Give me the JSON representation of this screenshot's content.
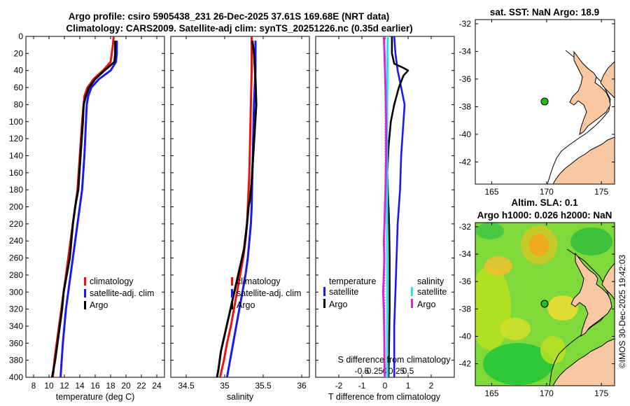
{
  "titles": {
    "line1": "Argo profile: csiro 5905438_231 26-Dec-2025 37.61S 169.68E (NRT data)",
    "line2": "Climatology: CARS2009. Satellite-adj clim: synTS_20251226.nc (0.35d earlier)",
    "sst_title": "sat. SST: NaN Argo: 18.9",
    "sla_title1": "Altim. SLA: 0.1",
    "sla_title2": "Argo h1000: 0.026 h2000: NaN"
  },
  "credit": "©IMOS 30-Dec-2025 19:42:03",
  "colors": {
    "climatology": "#ee1111",
    "satellite": "#1a1aee",
    "argo": "#000000",
    "sat_salinity": "#22e5e5",
    "argo_salinity": "#e020e0",
    "land": "#f9c8a0",
    "marker": "#22bb22"
  },
  "chart_data": [
    {
      "type": "line",
      "name": "temperature-profile",
      "xlabel": "temperature (deg C)",
      "ylabel": "depth",
      "xlim": [
        7,
        25
      ],
      "ylim": [
        400,
        0
      ],
      "xticks": [
        8,
        10,
        12,
        14,
        16,
        18,
        20,
        22,
        24
      ],
      "yticks": [
        0,
        20,
        40,
        60,
        80,
        100,
        120,
        140,
        160,
        180,
        200,
        220,
        240,
        260,
        280,
        300,
        320,
        340,
        360,
        380,
        400
      ],
      "legend": [
        "climatology",
        "satellite-adj. clim",
        "Argo"
      ],
      "legend_position": "lower-right",
      "series": [
        {
          "name": "climatology",
          "x": [
            18.4,
            18.3,
            18.0,
            17.0,
            15.8,
            15.0,
            14.6,
            14.5,
            14.3,
            14.0,
            13.7,
            13.4,
            13.1,
            12.8,
            12.5,
            12.2,
            11.9,
            11.6,
            11.3,
            11.0,
            10.7,
            10.5
          ],
          "y": [
            0,
            10,
            30,
            40,
            50,
            60,
            70,
            80,
            100,
            140,
            180,
            200,
            220,
            240,
            260,
            280,
            300,
            320,
            340,
            360,
            380,
            400
          ]
        },
        {
          "name": "satellite-adj. clim",
          "x": [
            18.8,
            18.8,
            18.7,
            18.0,
            16.5,
            15.5,
            15.1,
            14.9,
            14.8,
            14.6,
            14.3,
            14.0,
            13.7,
            13.4,
            13.1,
            12.8,
            12.5,
            12.2,
            12.0,
            11.8,
            11.5
          ],
          "y": [
            5,
            20,
            30,
            40,
            50,
            60,
            70,
            80,
            100,
            140,
            180,
            200,
            220,
            240,
            260,
            280,
            300,
            320,
            340,
            360,
            400
          ]
        },
        {
          "name": "Argo",
          "x": [
            18.6,
            18.6,
            18.5,
            17.2,
            16.0,
            15.2,
            14.8,
            14.5,
            14.4,
            14.1,
            13.8,
            13.4,
            13.1,
            12.9,
            12.7,
            12.3,
            11.9,
            11.7,
            11.4,
            11.1,
            10.8,
            10.6,
            10.4
          ],
          "y": [
            5,
            20,
            30,
            40,
            50,
            60,
            70,
            80,
            100,
            140,
            180,
            200,
            220,
            240,
            260,
            280,
            300,
            320,
            340,
            360,
            380,
            390,
            400
          ]
        }
      ]
    },
    {
      "type": "line",
      "name": "salinity-profile",
      "xlabel": "salinity",
      "ylabel": "depth",
      "xlim": [
        34.3,
        36.1
      ],
      "ylim": [
        400,
        0
      ],
      "xticks": [
        34.5,
        35,
        35.5,
        36
      ],
      "legend": [
        "climatology",
        "satellite-adj. clim",
        "Argo"
      ],
      "legend_position": "lower-right",
      "series": [
        {
          "name": "climatology",
          "x": [
            35.35,
            35.35,
            35.34,
            35.33,
            35.32,
            35.31,
            35.3,
            35.29,
            35.27,
            35.24,
            35.2,
            35.16,
            35.12,
            35.08,
            35.03,
            34.99,
            34.94
          ],
          "y": [
            0,
            40,
            80,
            120,
            160,
            180,
            200,
            220,
            240,
            260,
            280,
            300,
            320,
            340,
            360,
            380,
            400
          ]
        },
        {
          "name": "satellite-adj. clim",
          "x": [
            35.4,
            35.4,
            35.38,
            35.37,
            35.36,
            35.35,
            35.34,
            35.32,
            35.3,
            35.27,
            35.23,
            35.19,
            35.15,
            35.11,
            35.07,
            35.03
          ],
          "y": [
            5,
            40,
            80,
            120,
            160,
            200,
            220,
            240,
            260,
            280,
            300,
            320,
            340,
            360,
            380,
            400
          ]
        },
        {
          "name": "Argo",
          "x": [
            35.36,
            35.38,
            35.4,
            35.41,
            35.39,
            35.37,
            35.35,
            35.33,
            35.31,
            35.29,
            35.25,
            35.2,
            35.15,
            35.1,
            35.05,
            35.0,
            34.95,
            34.92,
            34.9
          ],
          "y": [
            5,
            20,
            50,
            80,
            110,
            140,
            170,
            190,
            200,
            220,
            250,
            270,
            290,
            310,
            330,
            350,
            370,
            390,
            400
          ]
        }
      ]
    },
    {
      "type": "line",
      "name": "difference-profile",
      "xlabel": "T difference from climatology",
      "x2label": "S difference from climatology",
      "ylabel": "depth",
      "xlim": [
        -3,
        3
      ],
      "ylim": [
        400,
        0
      ],
      "xticks": [
        -2,
        -1,
        0,
        1,
        2
      ],
      "x2ticks": [
        "-0.5",
        "-0.25",
        "0",
        "0.25",
        "0.5"
      ],
      "legend": {
        "temperature": [
          "satellite",
          "Argo"
        ],
        "salinity": [
          "satellite",
          "Argo"
        ]
      },
      "legend_position": "lower-center",
      "series": [
        {
          "name": "T satellite",
          "x": [
            0.4,
            0.45,
            0.55,
            0.7,
            0.85,
            0.8,
            0.7,
            0.65,
            0.55,
            0.5,
            0.45,
            0.4,
            0.4,
            0.4
          ],
          "y": [
            0,
            20,
            40,
            60,
            80,
            100,
            140,
            180,
            220,
            260,
            300,
            340,
            380,
            400
          ]
        },
        {
          "name": "T Argo",
          "x": [
            0.3,
            0.3,
            0.4,
            0.8,
            1.0,
            0.8,
            0.6,
            0.4,
            0.25,
            0.15,
            0.1,
            0.12,
            0.15,
            0.18,
            0.2,
            0.2,
            0.15
          ],
          "y": [
            0,
            20,
            32,
            37,
            40,
            46,
            60,
            80,
            100,
            130,
            160,
            180,
            200,
            220,
            260,
            320,
            400
          ]
        },
        {
          "name": "S satellite",
          "x": [
            0.12,
            0.11,
            0.1,
            0.09,
            0.09,
            0.09,
            0.1,
            0.1,
            0.1
          ],
          "y": [
            0,
            20,
            60,
            100,
            160,
            220,
            300,
            360,
            400
          ]
        },
        {
          "name": "S Argo",
          "x": [
            -0.05,
            -0.02,
            0.0,
            0.02,
            0.05,
            0.05,
            0.02,
            0.0,
            -0.02,
            -0.05,
            -0.03,
            -0.05,
            -0.08,
            -0.05,
            -0.03,
            -0.02,
            -0.01
          ],
          "y": [
            0,
            20,
            40,
            60,
            100,
            140,
            180,
            200,
            220,
            240,
            260,
            280,
            300,
            320,
            350,
            380,
            400
          ]
        }
      ]
    },
    {
      "type": "scatter",
      "name": "sst-map",
      "title": "sat. SST: NaN Argo: 18.9",
      "xlim": [
        163.5,
        176.2
      ],
      "ylim": [
        -43.6,
        -31.7
      ],
      "xticks": [
        165,
        170,
        175
      ],
      "yticks": [
        -32,
        -34,
        -36,
        -38,
        -40,
        -42
      ],
      "points": [
        {
          "x": 169.68,
          "y": -37.61,
          "label": "Argo float"
        }
      ]
    },
    {
      "type": "heatmap",
      "name": "sla-map",
      "title": "Altim. SLA: 0.1",
      "subtitle": "Argo h1000: 0.026 h2000: NaN",
      "xlim": [
        163.5,
        176.2
      ],
      "ylim": [
        -43.6,
        -31.7
      ],
      "xticks": [
        165,
        170,
        175
      ],
      "yticks": [
        -32,
        -34,
        -36,
        -38,
        -40,
        -42
      ],
      "points": [
        {
          "x": 169.68,
          "y": -37.61,
          "label": "Argo float"
        }
      ]
    }
  ]
}
